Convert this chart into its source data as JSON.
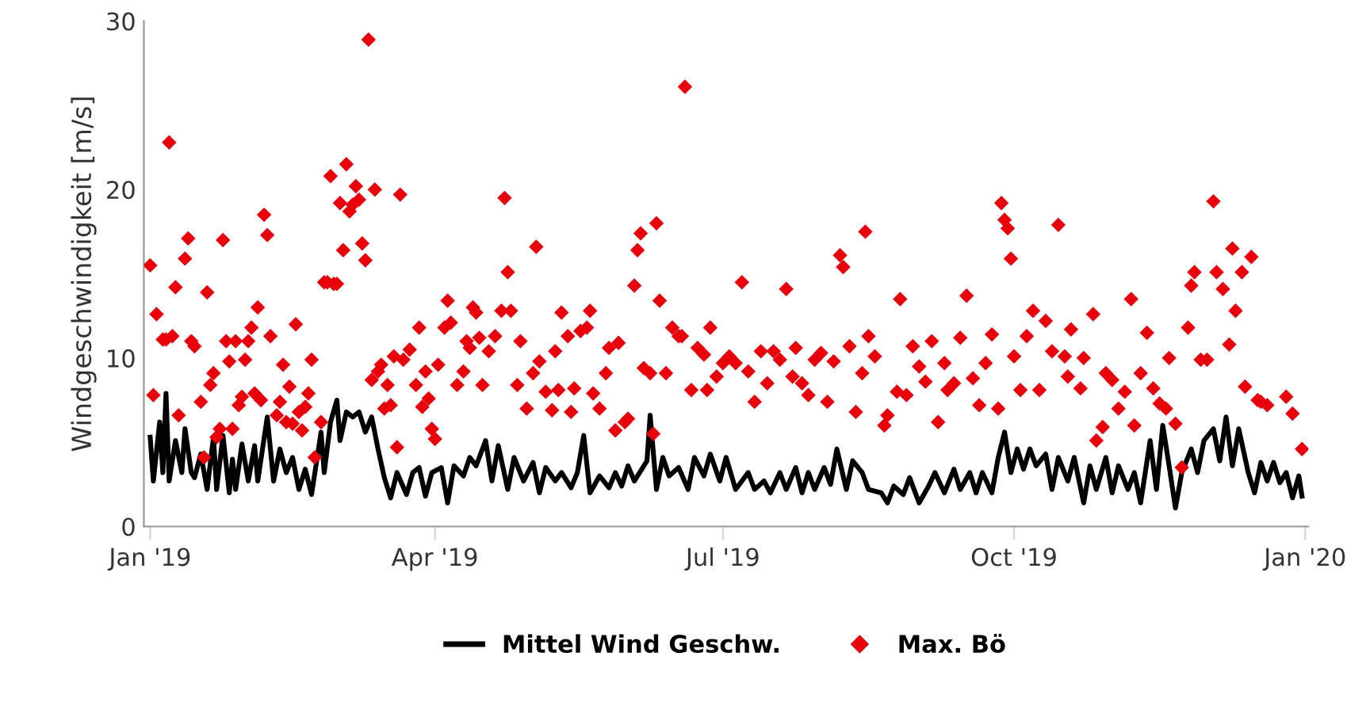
{
  "chart_data": {
    "type": "scatter",
    "ylabel": "Windgeschwindigkeit [m/s]",
    "xlim": [
      "2018-12-30",
      "2020-01-02"
    ],
    "ylim": [
      0,
      30
    ],
    "yticks": [
      0,
      10,
      20,
      30
    ],
    "xticks": [
      {
        "value": "2019-01-01",
        "label": "Jan '19"
      },
      {
        "value": "2019-04-01",
        "label": "Apr '19"
      },
      {
        "value": "2019-07-01",
        "label": "Jul '19"
      },
      {
        "value": "2019-10-01",
        "label": "Oct '19"
      },
      {
        "value": "2020-01-01",
        "label": "Jan '20"
      }
    ],
    "grid": false,
    "legend": "bottom",
    "series": [
      {
        "name": "Mittel Wind Geschw.",
        "type": "line",
        "color": "#000000",
        "marker": "none",
        "line_style": "solid",
        "x": [
          "2019-01-01",
          "2019-01-02",
          "2019-01-04",
          "2019-01-05",
          "2019-01-06",
          "2019-01-07",
          "2019-01-09",
          "2019-01-11",
          "2019-01-12",
          "2019-01-14",
          "2019-01-15",
          "2019-01-17",
          "2019-01-19",
          "2019-01-21",
          "2019-01-22",
          "2019-01-24",
          "2019-01-26",
          "2019-01-27",
          "2019-01-28",
          "2019-01-30",
          "2019-02-01",
          "2019-02-03",
          "2019-02-04",
          "2019-02-07",
          "2019-02-09",
          "2019-02-11",
          "2019-02-13",
          "2019-02-15",
          "2019-02-17",
          "2019-02-19",
          "2019-02-21",
          "2019-02-24",
          "2019-02-25",
          "2019-02-27",
          "2019-03-01",
          "2019-03-02",
          "2019-03-04",
          "2019-03-06",
          "2019-03-08",
          "2019-03-10",
          "2019-03-12",
          "2019-03-14",
          "2019-03-16",
          "2019-03-18",
          "2019-03-20",
          "2019-03-23",
          "2019-03-25",
          "2019-03-27",
          "2019-03-29",
          "2019-03-31",
          "2019-04-03",
          "2019-04-05",
          "2019-04-07",
          "2019-04-10",
          "2019-04-12",
          "2019-04-14",
          "2019-04-17",
          "2019-04-19",
          "2019-04-21",
          "2019-04-24",
          "2019-04-26",
          "2019-04-29",
          "2019-05-02",
          "2019-05-04",
          "2019-05-06",
          "2019-05-09",
          "2019-05-11",
          "2019-05-14",
          "2019-05-16",
          "2019-05-18",
          "2019-05-20",
          "2019-05-23",
          "2019-05-26",
          "2019-05-28",
          "2019-05-30",
          "2019-06-01",
          "2019-06-03",
          "2019-06-07",
          "2019-06-08",
          "2019-06-10",
          "2019-06-12",
          "2019-06-14",
          "2019-06-17",
          "2019-06-20",
          "2019-06-22",
          "2019-06-25",
          "2019-06-27",
          "2019-06-30",
          "2019-07-02",
          "2019-07-05",
          "2019-07-09",
          "2019-07-11",
          "2019-07-14",
          "2019-07-16",
          "2019-07-19",
          "2019-07-21",
          "2019-07-24",
          "2019-07-26",
          "2019-07-28",
          "2019-07-30",
          "2019-08-02",
          "2019-08-04",
          "2019-08-06",
          "2019-08-09",
          "2019-08-11",
          "2019-08-14",
          "2019-08-16",
          "2019-08-20",
          "2019-08-22",
          "2019-08-24",
          "2019-08-27",
          "2019-08-29",
          "2019-09-01",
          "2019-09-04",
          "2019-09-06",
          "2019-09-09",
          "2019-09-12",
          "2019-09-14",
          "2019-09-17",
          "2019-09-19",
          "2019-09-21",
          "2019-09-24",
          "2019-09-26",
          "2019-09-28",
          "2019-09-30",
          "2019-10-02",
          "2019-10-04",
          "2019-10-06",
          "2019-10-08",
          "2019-10-11",
          "2019-10-13",
          "2019-10-15",
          "2019-10-18",
          "2019-10-20",
          "2019-10-23",
          "2019-10-25",
          "2019-10-27",
          "2019-10-30",
          "2019-11-01",
          "2019-11-03",
          "2019-11-06",
          "2019-11-08",
          "2019-11-10",
          "2019-11-13",
          "2019-11-15",
          "2019-11-17",
          "2019-11-19",
          "2019-11-21",
          "2019-11-23",
          "2019-11-26",
          "2019-11-28",
          "2019-11-30",
          "2019-12-03",
          "2019-12-05",
          "2019-12-07",
          "2019-12-09",
          "2019-12-11",
          "2019-12-14",
          "2019-12-16",
          "2019-12-18",
          "2019-12-20",
          "2019-12-22",
          "2019-12-24",
          "2019-12-26",
          "2019-12-28",
          "2019-12-30",
          "2019-12-31"
        ],
        "values": [
          5.3,
          2.7,
          6.2,
          3.2,
          7.9,
          2.7,
          5.1,
          3.2,
          5.8,
          3.2,
          2.9,
          4.3,
          2.2,
          5.3,
          2.2,
          5.4,
          2.0,
          4.0,
          2.2,
          4.9,
          2.7,
          4.8,
          2.7,
          6.5,
          2.7,
          4.6,
          3.2,
          4.1,
          2.2,
          3.4,
          1.9,
          5.6,
          3.2,
          6.2,
          7.5,
          5.1,
          6.8,
          6.5,
          6.8,
          5.6,
          6.5,
          4.6,
          2.9,
          1.7,
          3.2,
          1.9,
          3.2,
          3.5,
          1.8,
          3.2,
          3.5,
          1.4,
          3.6,
          3.0,
          4.1,
          3.6,
          5.1,
          2.7,
          4.8,
          2.2,
          4.1,
          2.7,
          3.8,
          2.0,
          3.5,
          2.7,
          3.2,
          2.3,
          3.2,
          5.4,
          2.0,
          3.0,
          2.3,
          3.2,
          2.4,
          3.6,
          2.7,
          3.9,
          6.6,
          2.2,
          4.1,
          3.0,
          3.5,
          2.2,
          4.1,
          3.0,
          4.3,
          2.7,
          4.1,
          2.2,
          3.2,
          2.2,
          2.7,
          2.0,
          3.2,
          2.2,
          3.5,
          2.0,
          3.2,
          2.2,
          3.5,
          2.5,
          4.6,
          2.2,
          3.9,
          3.2,
          2.2,
          2.0,
          1.4,
          2.4,
          1.9,
          2.9,
          1.4,
          2.4,
          3.2,
          2.0,
          3.4,
          2.2,
          3.2,
          2.0,
          3.2,
          2.0,
          4.1,
          5.6,
          3.2,
          4.6,
          3.4,
          4.6,
          3.6,
          4.3,
          2.2,
          4.1,
          2.7,
          4.1,
          1.4,
          3.6,
          2.2,
          4.1,
          2.0,
          3.6,
          2.2,
          3.2,
          1.4,
          5.1,
          2.2,
          6.0,
          3.6,
          1.1,
          3.2,
          4.6,
          3.2,
          5.1,
          5.8,
          3.9,
          6.5,
          3.6,
          5.8,
          3.2,
          2.0,
          3.8,
          2.7,
          3.8,
          2.6,
          3.2,
          1.7,
          3.0,
          1.8
        ]
      },
      {
        "name": "Max. Bö",
        "color": "#e8000b",
        "marker": "diamond",
        "x": [
          "2019-01-01",
          "2019-01-02",
          "2019-01-03",
          "2019-01-05",
          "2019-01-06",
          "2019-01-07",
          "2019-01-08",
          "2019-01-09",
          "2019-01-10",
          "2019-01-12",
          "2019-01-13",
          "2019-01-14",
          "2019-01-15",
          "2019-01-17",
          "2019-01-18",
          "2019-01-19",
          "2019-01-20",
          "2019-01-21",
          "2019-01-22",
          "2019-01-23",
          "2019-01-24",
          "2019-01-25",
          "2019-01-26",
          "2019-01-27",
          "2019-01-28",
          "2019-01-29",
          "2019-01-30",
          "2019-01-31",
          "2019-02-01",
          "2019-02-02",
          "2019-02-03",
          "2019-02-04",
          "2019-02-05",
          "2019-02-06",
          "2019-02-07",
          "2019-02-08",
          "2019-02-10",
          "2019-02-11",
          "2019-02-12",
          "2019-02-13",
          "2019-02-14",
          "2019-02-15",
          "2019-02-16",
          "2019-02-17",
          "2019-02-18",
          "2019-02-19",
          "2019-02-20",
          "2019-02-21",
          "2019-02-22",
          "2019-02-24",
          "2019-02-25",
          "2019-02-26",
          "2019-02-27",
          "2019-02-28",
          "2019-03-01",
          "2019-03-02",
          "2019-03-03",
          "2019-03-04",
          "2019-03-05",
          "2019-03-06",
          "2019-03-07",
          "2019-03-08",
          "2019-03-09",
          "2019-03-10",
          "2019-03-11",
          "2019-03-12",
          "2019-03-13",
          "2019-03-14",
          "2019-03-15",
          "2019-03-16",
          "2019-03-17",
          "2019-03-18",
          "2019-03-19",
          "2019-03-20",
          "2019-03-21",
          "2019-03-22",
          "2019-03-24",
          "2019-03-26",
          "2019-03-27",
          "2019-03-28",
          "2019-03-29",
          "2019-03-30",
          "2019-03-31",
          "2019-04-01",
          "2019-04-02",
          "2019-04-04",
          "2019-04-05",
          "2019-04-06",
          "2019-04-08",
          "2019-04-10",
          "2019-04-11",
          "2019-04-12",
          "2019-04-13",
          "2019-04-14",
          "2019-04-15",
          "2019-04-16",
          "2019-04-18",
          "2019-04-20",
          "2019-04-22",
          "2019-04-23",
          "2019-04-24",
          "2019-04-25",
          "2019-04-27",
          "2019-04-28",
          "2019-04-30",
          "2019-05-02",
          "2019-05-03",
          "2019-05-04",
          "2019-05-06",
          "2019-05-08",
          "2019-05-09",
          "2019-05-10",
          "2019-05-11",
          "2019-05-13",
          "2019-05-14",
          "2019-05-15",
          "2019-05-17",
          "2019-05-19",
          "2019-05-20",
          "2019-05-21",
          "2019-05-23",
          "2019-05-25",
          "2019-05-26",
          "2019-05-28",
          "2019-05-29",
          "2019-05-31",
          "2019-06-01",
          "2019-06-03",
          "2019-06-04",
          "2019-06-05",
          "2019-06-06",
          "2019-06-08",
          "2019-06-09",
          "2019-06-10",
          "2019-06-11",
          "2019-06-13",
          "2019-06-15",
          "2019-06-17",
          "2019-06-18",
          "2019-06-19",
          "2019-06-21",
          "2019-06-23",
          "2019-06-25",
          "2019-06-26",
          "2019-06-27",
          "2019-06-29",
          "2019-07-01",
          "2019-07-03",
          "2019-07-05",
          "2019-07-07",
          "2019-07-09",
          "2019-07-11",
          "2019-07-13",
          "2019-07-15",
          "2019-07-17",
          "2019-07-19",
          "2019-07-21",
          "2019-07-23",
          "2019-07-24",
          "2019-07-26",
          "2019-07-28",
          "2019-07-30",
          "2019-08-01",
          "2019-08-03",
          "2019-08-05",
          "2019-08-07",
          "2019-08-08",
          "2019-08-10",
          "2019-08-12",
          "2019-08-14",
          "2019-08-15",
          "2019-08-16",
          "2019-08-18",
          "2019-08-21",
          "2019-08-22",
          "2019-08-25",
          "2019-08-26",
          "2019-08-28",
          "2019-08-30",
          "2019-09-01",
          "2019-09-03",
          "2019-09-05",
          "2019-09-07",
          "2019-09-09",
          "2019-09-10",
          "2019-09-12",
          "2019-09-14",
          "2019-09-16",
          "2019-09-18",
          "2019-09-20",
          "2019-09-22",
          "2019-09-24",
          "2019-09-26",
          "2019-09-27",
          "2019-09-28",
          "2019-09-29",
          "2019-09-30",
          "2019-10-01",
          "2019-10-03",
          "2019-10-05",
          "2019-10-07",
          "2019-10-09",
          "2019-10-11",
          "2019-10-13",
          "2019-10-15",
          "2019-10-17",
          "2019-10-18",
          "2019-10-19",
          "2019-10-22",
          "2019-10-23",
          "2019-10-26",
          "2019-10-27",
          "2019-10-29",
          "2019-10-30",
          "2019-11-01",
          "2019-11-03",
          "2019-11-05",
          "2019-11-07",
          "2019-11-08",
          "2019-11-10",
          "2019-11-12",
          "2019-11-14",
          "2019-11-16",
          "2019-11-18",
          "2019-11-19",
          "2019-11-21",
          "2019-11-23",
          "2019-11-25",
          "2019-11-26",
          "2019-11-27",
          "2019-11-29",
          "2019-12-01",
          "2019-12-03",
          "2019-12-04",
          "2019-12-06",
          "2019-12-08",
          "2019-12-09",
          "2019-12-10",
          "2019-12-12",
          "2019-12-13",
          "2019-12-15",
          "2019-12-17",
          "2019-12-18",
          "2019-12-20",
          "2019-12-26",
          "2019-12-28",
          "2019-12-31"
        ],
        "values": [
          15.5,
          7.8,
          12.6,
          11.1,
          11.1,
          22.8,
          11.3,
          14.2,
          6.6,
          15.9,
          17.1,
          11.0,
          10.7,
          7.4,
          4.1,
          13.9,
          8.4,
          9.1,
          5.3,
          5.8,
          17.0,
          11.0,
          9.8,
          5.8,
          11.0,
          7.2,
          7.7,
          9.9,
          11.0,
          11.8,
          7.9,
          13.0,
          7.5,
          18.5,
          17.3,
          11.3,
          6.6,
          7.4,
          9.6,
          6.2,
          8.3,
          6.1,
          12.0,
          6.8,
          5.7,
          7.1,
          7.9,
          9.9,
          4.1,
          6.2,
          14.5,
          14.5,
          20.8,
          14.4,
          14.4,
          19.2,
          16.4,
          21.5,
          18.7,
          19.1,
          20.2,
          19.4,
          16.8,
          15.8,
          28.9,
          8.7,
          20.0,
          9.2,
          9.6,
          7.0,
          8.4,
          7.2,
          10.1,
          4.7,
          19.7,
          9.9,
          10.5,
          8.4,
          11.8,
          7.1,
          9.2,
          7.6,
          5.8,
          5.2,
          9.6,
          11.8,
          13.4,
          12.1,
          8.4,
          9.2,
          11.0,
          10.6,
          13.0,
          12.7,
          11.2,
          8.4,
          10.4,
          11.3,
          12.8,
          19.5,
          15.1,
          12.8,
          8.4,
          11.0,
          7.0,
          9.1,
          16.6,
          9.8,
          8.0,
          6.9,
          10.4,
          8.1,
          12.7,
          11.3,
          6.8,
          8.2,
          11.6,
          11.8,
          12.8,
          7.9,
          7.0,
          9.1,
          10.6,
          5.7,
          10.9,
          6.2,
          6.4,
          14.3,
          16.4,
          17.4,
          9.4,
          9.1,
          5.5,
          18.0,
          13.4,
          9.1,
          11.8,
          11.3,
          11.3,
          26.1,
          8.1,
          10.6,
          10.2,
          8.1,
          11.8,
          8.9,
          9.7,
          10.1,
          9.7,
          14.5,
          9.2,
          7.4,
          10.4,
          8.5,
          10.4,
          9.9,
          14.1,
          8.9,
          10.6,
          8.5,
          7.8,
          9.9,
          10.3,
          7.4,
          9.8,
          16.1,
          15.4,
          10.7,
          6.8,
          9.1,
          17.5,
          11.3,
          10.1,
          6.0,
          6.6,
          8.0,
          13.5,
          7.8,
          10.7,
          9.5,
          8.6,
          11.0,
          6.2,
          9.7,
          8.1,
          8.5,
          11.2,
          13.7,
          8.8,
          7.2,
          9.7,
          11.4,
          7.0,
          19.2,
          18.2,
          17.7,
          15.9,
          10.1,
          8.1,
          11.3,
          12.8,
          8.1,
          12.2,
          10.4,
          17.9,
          10.1,
          8.9,
          11.7,
          8.2,
          10.0,
          12.6,
          5.1,
          5.9,
          9.1,
          8.7,
          7.0,
          8.0,
          13.5,
          6.0,
          9.1,
          11.5,
          8.2,
          7.3,
          7.0,
          10.0,
          6.1,
          3.5,
          11.8,
          14.3,
          15.1,
          9.9,
          9.9,
          19.3,
          15.1,
          14.1,
          10.8,
          16.5,
          12.8,
          15.1,
          8.3,
          16.0,
          7.5,
          7.4,
          7.2,
          7.7,
          6.7,
          4.6
        ]
      }
    ]
  }
}
